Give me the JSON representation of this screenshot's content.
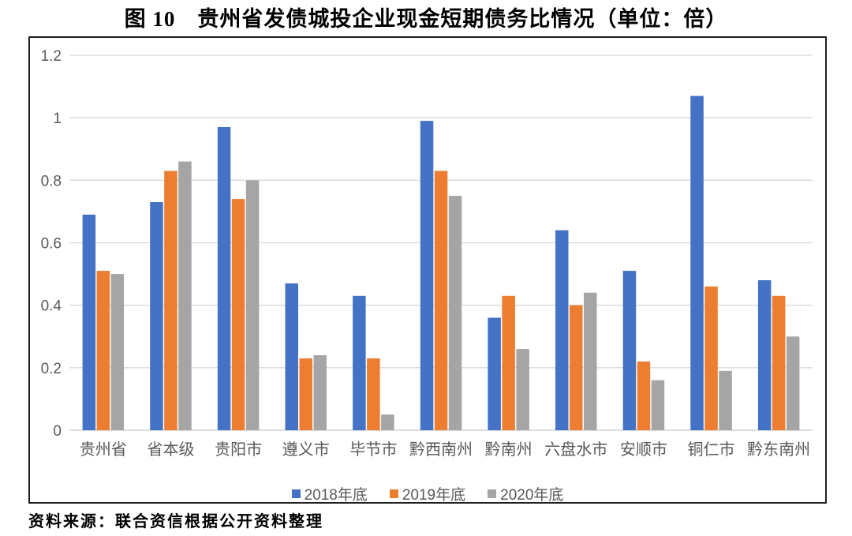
{
  "title": "图 10　贵州省发债城投企业现金短期债务比情况（单位：倍）",
  "source": "资料来源：联合资信根据公开资料整理",
  "chart_data": {
    "type": "bar",
    "title": "图 10　贵州省发债城投企业现金短期债务比情况（单位：倍）",
    "xlabel": "",
    "ylabel": "",
    "unit": "倍",
    "categories": [
      "贵州省",
      "省本级",
      "贵阳市",
      "遵义市",
      "毕节市",
      "黔西南州",
      "黔南州",
      "六盘水市",
      "安顺市",
      "铜仁市",
      "黔东南州"
    ],
    "series": [
      {
        "name": "2018年底",
        "color": "#4472C4",
        "values": [
          0.69,
          0.73,
          0.97,
          0.47,
          0.43,
          0.99,
          0.36,
          0.64,
          0.51,
          1.07,
          0.48
        ]
      },
      {
        "name": "2019年底",
        "color": "#ED7D31",
        "values": [
          0.51,
          0.83,
          0.74,
          0.23,
          0.23,
          0.83,
          0.43,
          0.4,
          0.22,
          0.46,
          0.43
        ]
      },
      {
        "name": "2020年底",
        "color": "#A5A5A5",
        "values": [
          0.5,
          0.86,
          0.8,
          0.24,
          0.05,
          0.75,
          0.26,
          0.44,
          0.16,
          0.19,
          0.3
        ]
      }
    ],
    "ylim": [
      0,
      1.2
    ],
    "yticks": [
      0,
      0.2,
      0.4,
      0.6,
      0.8,
      1,
      1.2
    ],
    "ytick_labels": [
      "0",
      "0.2",
      "0.4",
      "0.6",
      "0.8",
      "1",
      "1.2"
    ],
    "grid": "horizontal",
    "legend_position": "bottom",
    "style": {
      "grid_color": "#D9D9D9",
      "axis_line_color": "#C9C9C9",
      "tick_text_color": "#595959",
      "border_color": "#1f1f1f"
    }
  }
}
